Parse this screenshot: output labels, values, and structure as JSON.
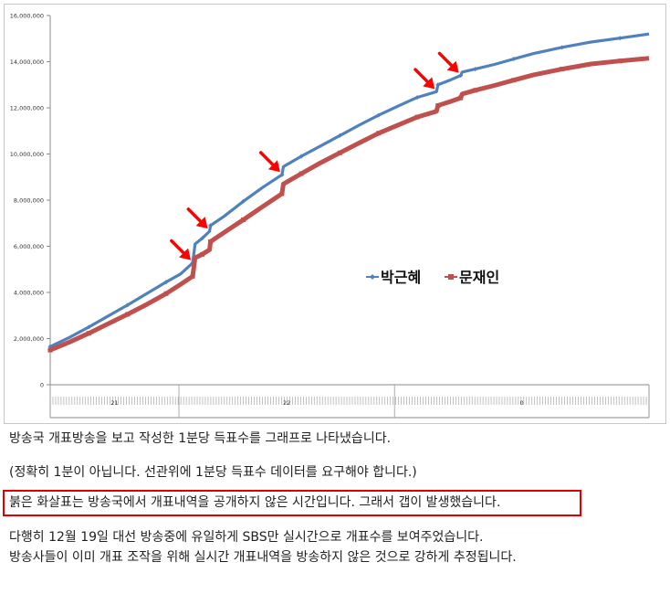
{
  "chart_data": {
    "type": "line",
    "title": "",
    "xlabel": "",
    "ylabel": "",
    "ylim": [
      0,
      16000000
    ],
    "y_ticks": [
      "0",
      "2,000,000",
      "4,000,000",
      "6,000,000",
      "8,000,000",
      "10,000,000",
      "12,000,000",
      "14,000,000",
      "16,000,000"
    ],
    "x_group_labels": [
      "21",
      "22",
      "0"
    ],
    "x_ticks_per_group": 1,
    "grid": false,
    "legend": "center-right",
    "series": [
      {
        "name": "박근혜",
        "color": "#4f81bd",
        "points": [
          [
            0,
            1650000
          ],
          [
            4,
            2050000
          ],
          [
            8,
            2500000
          ],
          [
            12,
            2980000
          ],
          [
            16,
            3450000
          ],
          [
            20,
            3950000
          ],
          [
            24,
            4450000
          ],
          [
            27,
            4800000
          ],
          [
            29.5,
            5280000
          ],
          [
            30,
            6100000
          ],
          [
            31.5,
            6350000
          ],
          [
            33,
            6650000
          ],
          [
            33.2,
            6900000
          ],
          [
            36,
            7300000
          ],
          [
            40,
            7950000
          ],
          [
            44,
            8550000
          ],
          [
            48,
            9100000
          ],
          [
            48.3,
            9450000
          ],
          [
            52,
            9900000
          ],
          [
            56,
            10350000
          ],
          [
            60,
            10800000
          ],
          [
            64,
            11250000
          ],
          [
            68,
            11680000
          ],
          [
            72,
            12070000
          ],
          [
            76,
            12450000
          ],
          [
            80,
            12700000
          ],
          [
            80.3,
            13000000
          ],
          [
            83,
            13220000
          ],
          [
            85,
            13400000
          ],
          [
            85.3,
            13550000
          ],
          [
            88,
            13680000
          ],
          [
            92,
            13880000
          ],
          [
            96,
            14120000
          ],
          [
            100,
            14350000
          ],
          [
            106,
            14620000
          ],
          [
            112,
            14850000
          ],
          [
            118,
            15020000
          ],
          [
            124,
            15200000
          ]
        ]
      },
      {
        "name": "문재인",
        "color": "#c0504d",
        "points": [
          [
            0,
            1500000
          ],
          [
            4,
            1850000
          ],
          [
            8,
            2230000
          ],
          [
            12,
            2640000
          ],
          [
            16,
            3050000
          ],
          [
            20,
            3480000
          ],
          [
            24,
            3950000
          ],
          [
            27,
            4350000
          ],
          [
            29.5,
            4700000
          ],
          [
            30,
            5500000
          ],
          [
            31.5,
            5650000
          ],
          [
            33,
            5850000
          ],
          [
            33.2,
            6200000
          ],
          [
            36,
            6600000
          ],
          [
            40,
            7150000
          ],
          [
            44,
            7720000
          ],
          [
            48,
            8280000
          ],
          [
            48.3,
            8700000
          ],
          [
            52,
            9150000
          ],
          [
            56,
            9620000
          ],
          [
            60,
            10050000
          ],
          [
            64,
            10480000
          ],
          [
            68,
            10900000
          ],
          [
            72,
            11250000
          ],
          [
            76,
            11600000
          ],
          [
            80,
            11850000
          ],
          [
            80.3,
            12100000
          ],
          [
            83,
            12280000
          ],
          [
            85,
            12430000
          ],
          [
            85.3,
            12600000
          ],
          [
            88,
            12760000
          ],
          [
            92,
            12970000
          ],
          [
            96,
            13200000
          ],
          [
            100,
            13420000
          ],
          [
            106,
            13680000
          ],
          [
            112,
            13900000
          ],
          [
            118,
            14030000
          ],
          [
            124,
            14150000
          ]
        ]
      }
    ],
    "x_range": [
      0,
      124
    ],
    "annotations": [
      {
        "type": "arrow",
        "color": "#ff0000",
        "series": "박근혜",
        "x": 29.5
      },
      {
        "type": "arrow",
        "color": "#ff0000",
        "series": "박근혜",
        "x": 33.0
      },
      {
        "type": "arrow",
        "color": "#ff0000",
        "series": "박근혜",
        "x": 48.0
      },
      {
        "type": "arrow",
        "color": "#ff0000",
        "series": "박근혜",
        "x": 80.0
      },
      {
        "type": "arrow",
        "color": "#ff0000",
        "series": "박근혜",
        "x": 85.0
      }
    ]
  },
  "captions": {
    "line1": "방송국 개표방송을 보고 작성한 1분당 득표수를 그래프로 나타냈습니다.",
    "line2": "(정확히 1분이 아닙니다. 선관위에 1분당 득표수 데이터를 요구해야 합니다.)",
    "line3": "붉은 화살표는 방송국에서 개표내역을 공개하지 않은 시간입니다. 그래서 갭이 발생했습니다.",
    "line4": "다행히 12월 19일 대선 방송중에 유일하게 SBS만 실시간으로 개표수를 보여주었습니다.",
    "line5": "방송사들이 이미 개표 조작을 위해 실시간 개표내역을 방송하지 않은 것으로 강하게 추정됩니다."
  },
  "colors": {
    "highlight_border": "#e00000",
    "arrow": "#ff0000",
    "axis": "#888888"
  }
}
